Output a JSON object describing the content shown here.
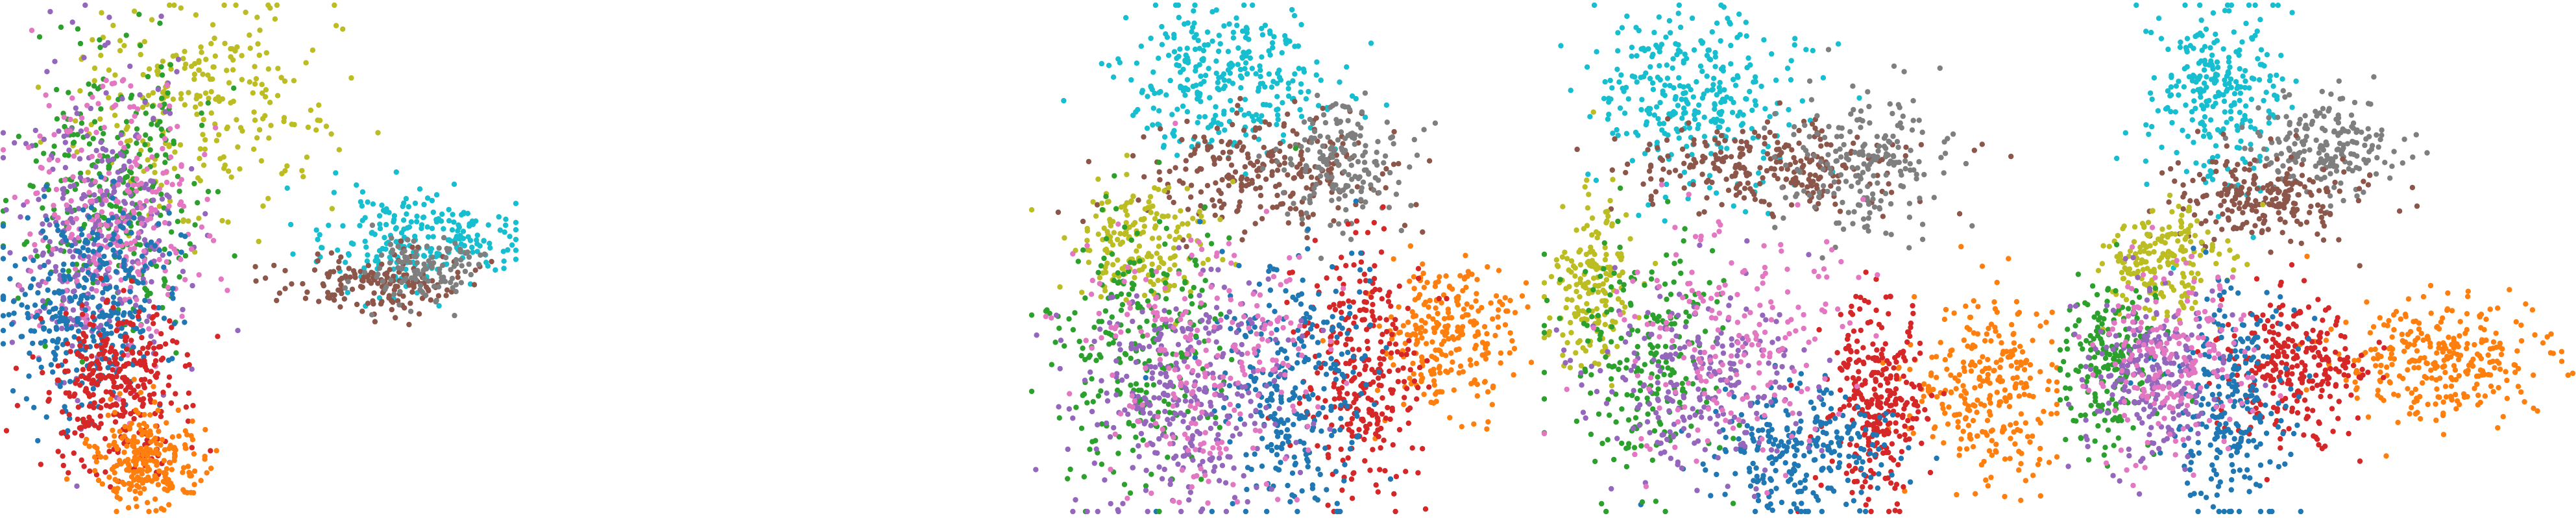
{
  "colors": {
    "blue": "#1f77b4",
    "orange": "#ff7f0e",
    "green": "#2ca02c",
    "red": "#d62728",
    "purple": "#9467bd",
    "brown": "#8c564b",
    "pink": "#e377c2",
    "gray": "#7f7f7f",
    "olive": "#bcbd22",
    "cyan": "#17becf"
  },
  "chart_data": [
    {
      "type": "scatter",
      "panel": 1,
      "axes": "hidden",
      "grid": false,
      "legend": "none",
      "xlim": [
        0,
        1
      ],
      "ylim": [
        0,
        1
      ],
      "clusters": [
        {
          "color": "olive",
          "cx": 0.38,
          "cy": 0.8,
          "sx": 0.12,
          "sy": 0.1,
          "count": 260
        },
        {
          "color": "cyan",
          "cx": 0.8,
          "cy": 0.54,
          "sx": 0.1,
          "sy": 0.05,
          "count": 230
        },
        {
          "color": "brown",
          "cx": 0.73,
          "cy": 0.45,
          "sx": 0.09,
          "sy": 0.03,
          "count": 160
        },
        {
          "color": "gray",
          "cx": 0.82,
          "cy": 0.48,
          "sx": 0.06,
          "sy": 0.03,
          "count": 110
        },
        {
          "color": "green",
          "cx": 0.22,
          "cy": 0.62,
          "sx": 0.08,
          "sy": 0.14,
          "count": 300
        },
        {
          "color": "purple",
          "cx": 0.18,
          "cy": 0.55,
          "sx": 0.08,
          "sy": 0.15,
          "count": 330
        },
        {
          "color": "pink",
          "cx": 0.22,
          "cy": 0.58,
          "sx": 0.09,
          "sy": 0.14,
          "count": 260
        },
        {
          "color": "blue",
          "cx": 0.17,
          "cy": 0.4,
          "sx": 0.08,
          "sy": 0.1,
          "count": 340
        },
        {
          "color": "red",
          "cx": 0.22,
          "cy": 0.25,
          "sx": 0.07,
          "sy": 0.08,
          "count": 320
        },
        {
          "color": "orange",
          "cx": 0.28,
          "cy": 0.1,
          "sx": 0.05,
          "sy": 0.05,
          "count": 240
        }
      ]
    },
    {
      "type": "scatter",
      "panel": 2,
      "axes": "hidden",
      "grid": false,
      "legend": "none",
      "xlim": [
        0,
        1
      ],
      "ylim": [
        0,
        1
      ],
      "clusters": [
        {
          "color": "cyan",
          "cx": 0.4,
          "cy": 0.86,
          "sx": 0.1,
          "sy": 0.07,
          "count": 300
        },
        {
          "color": "brown",
          "cx": 0.46,
          "cy": 0.67,
          "sx": 0.12,
          "sy": 0.06,
          "count": 260
        },
        {
          "color": "gray",
          "cx": 0.62,
          "cy": 0.68,
          "sx": 0.06,
          "sy": 0.06,
          "count": 170
        },
        {
          "color": "olive",
          "cx": 0.22,
          "cy": 0.53,
          "sx": 0.07,
          "sy": 0.06,
          "count": 190
        },
        {
          "color": "orange",
          "cx": 0.83,
          "cy": 0.34,
          "sx": 0.07,
          "sy": 0.07,
          "count": 260
        },
        {
          "color": "red",
          "cx": 0.66,
          "cy": 0.28,
          "sx": 0.06,
          "sy": 0.12,
          "count": 300
        },
        {
          "color": "blue",
          "cx": 0.52,
          "cy": 0.25,
          "sx": 0.08,
          "sy": 0.13,
          "count": 300
        },
        {
          "color": "green",
          "cx": 0.22,
          "cy": 0.32,
          "sx": 0.09,
          "sy": 0.13,
          "count": 260
        },
        {
          "color": "purple",
          "cx": 0.3,
          "cy": 0.22,
          "sx": 0.11,
          "sy": 0.12,
          "count": 320
        },
        {
          "color": "pink",
          "cx": 0.35,
          "cy": 0.3,
          "sx": 0.12,
          "sy": 0.14,
          "count": 240
        }
      ]
    },
    {
      "type": "scatter",
      "panel": 3,
      "axes": "hidden",
      "grid": false,
      "legend": "none",
      "xlim": [
        0,
        1
      ],
      "ylim": [
        0,
        1
      ],
      "clusters": [
        {
          "color": "cyan",
          "cx": 0.3,
          "cy": 0.82,
          "sx": 0.1,
          "sy": 0.09,
          "count": 320
        },
        {
          "color": "brown",
          "cx": 0.42,
          "cy": 0.68,
          "sx": 0.14,
          "sy": 0.05,
          "count": 260
        },
        {
          "color": "gray",
          "cx": 0.63,
          "cy": 0.68,
          "sx": 0.07,
          "sy": 0.07,
          "count": 200
        },
        {
          "color": "olive",
          "cx": 0.09,
          "cy": 0.45,
          "sx": 0.04,
          "sy": 0.09,
          "count": 180
        },
        {
          "color": "orange",
          "cx": 0.86,
          "cy": 0.24,
          "sx": 0.07,
          "sy": 0.09,
          "count": 280
        },
        {
          "color": "red",
          "cx": 0.65,
          "cy": 0.22,
          "sx": 0.05,
          "sy": 0.1,
          "count": 300
        },
        {
          "color": "blue",
          "cx": 0.5,
          "cy": 0.12,
          "sx": 0.09,
          "sy": 0.07,
          "count": 260
        },
        {
          "color": "green",
          "cx": 0.2,
          "cy": 0.3,
          "sx": 0.08,
          "sy": 0.12,
          "count": 220
        },
        {
          "color": "purple",
          "cx": 0.3,
          "cy": 0.25,
          "sx": 0.1,
          "sy": 0.1,
          "count": 240
        },
        {
          "color": "pink",
          "cx": 0.38,
          "cy": 0.33,
          "sx": 0.12,
          "sy": 0.12,
          "count": 200
        }
      ]
    },
    {
      "type": "scatter",
      "panel": 4,
      "axes": "hidden",
      "grid": false,
      "legend": "none",
      "xlim": [
        0,
        1
      ],
      "ylim": [
        0,
        1
      ],
      "clusters": [
        {
          "color": "cyan",
          "cx": 0.3,
          "cy": 0.84,
          "sx": 0.07,
          "sy": 0.09,
          "count": 260
        },
        {
          "color": "gray",
          "cx": 0.52,
          "cy": 0.72,
          "sx": 0.07,
          "sy": 0.05,
          "count": 200
        },
        {
          "color": "brown",
          "cx": 0.4,
          "cy": 0.62,
          "sx": 0.09,
          "sy": 0.04,
          "count": 220
        },
        {
          "color": "olive",
          "cx": 0.2,
          "cy": 0.5,
          "sx": 0.06,
          "sy": 0.05,
          "count": 190
        },
        {
          "color": "orange",
          "cx": 0.75,
          "cy": 0.3,
          "sx": 0.11,
          "sy": 0.06,
          "count": 300
        },
        {
          "color": "red",
          "cx": 0.45,
          "cy": 0.28,
          "sx": 0.07,
          "sy": 0.07,
          "count": 280
        },
        {
          "color": "blue",
          "cx": 0.33,
          "cy": 0.22,
          "sx": 0.06,
          "sy": 0.12,
          "count": 260
        },
        {
          "color": "green",
          "cx": 0.1,
          "cy": 0.3,
          "sx": 0.05,
          "sy": 0.08,
          "count": 200
        },
        {
          "color": "purple",
          "cx": 0.18,
          "cy": 0.27,
          "sx": 0.07,
          "sy": 0.08,
          "count": 240
        },
        {
          "color": "pink",
          "cx": 0.22,
          "cy": 0.3,
          "sx": 0.08,
          "sy": 0.09,
          "count": 200
        }
      ]
    }
  ]
}
